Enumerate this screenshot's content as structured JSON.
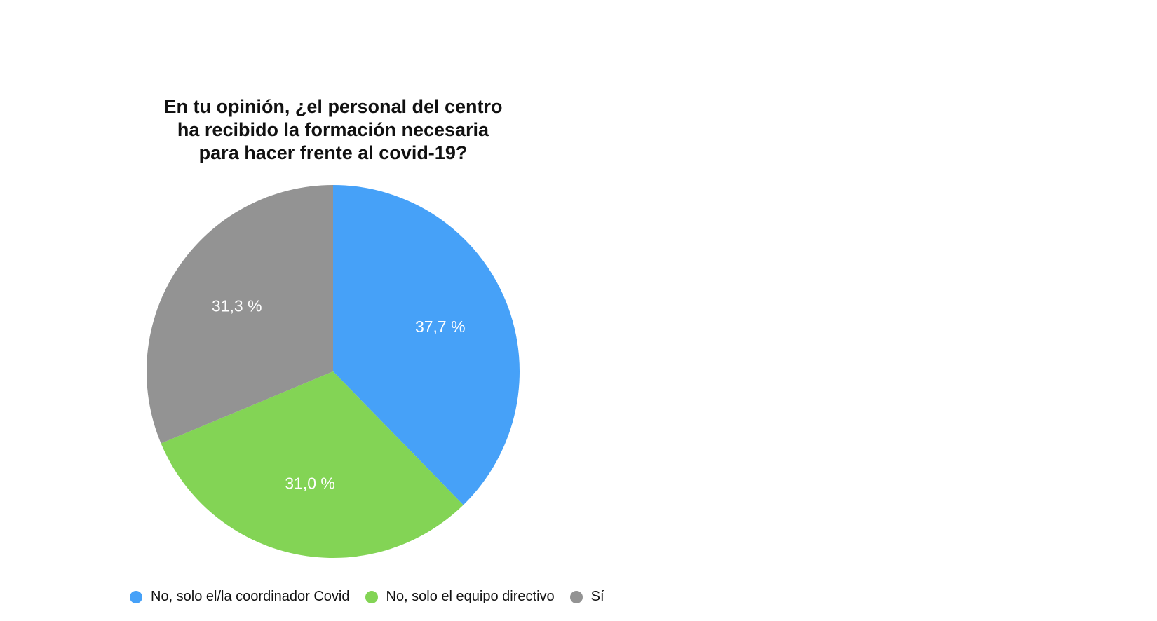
{
  "chart_data": {
    "type": "pie",
    "title": "En tu opinión, ¿el personal del centro ha recibido la formación necesaria para hacer frente al covid-19?",
    "title_lines": [
      "En tu opinión, ¿el personal del centro",
      "ha recibido la formación necesaria",
      "para hacer frente al covid-19?"
    ],
    "slices": [
      {
        "label": "No, solo el/la coordinador Covid",
        "value": 37.7,
        "display": "37,7 %",
        "color": "#46a1f8"
      },
      {
        "label": "No, solo el equipo directivo",
        "value": 31.0,
        "display": "31,0 %",
        "color": "#83d455"
      },
      {
        "label": "Sí",
        "value": 31.3,
        "display": "31,3 %",
        "color": "#939393"
      }
    ],
    "start_angle": "top",
    "direction": "clockwise",
    "legend_position": "bottom-left"
  }
}
